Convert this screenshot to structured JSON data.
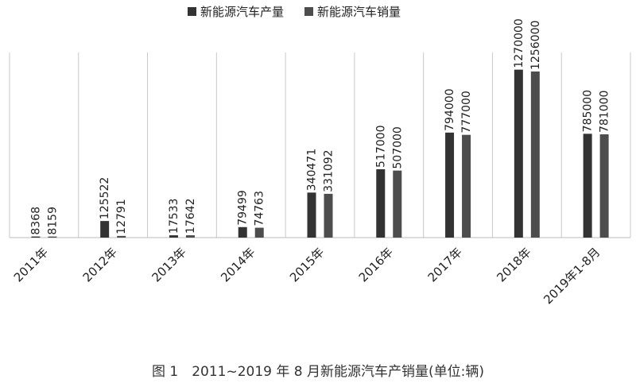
{
  "chart_data": {
    "type": "bar",
    "categories": [
      "2011年",
      "2012年",
      "2013年",
      "2014年",
      "2015年",
      "2016年",
      "2017年",
      "2018年",
      "2019年1-8月"
    ],
    "series": [
      {
        "name": "新能源汽车产量",
        "color": "#333333",
        "values": [
          8368,
          125522,
          17533,
          79499,
          340471,
          517000,
          794000,
          1270000,
          785000
        ],
        "labels": [
          "8368",
          "125522",
          "17533",
          "79499",
          "340471",
          "517000",
          "794000",
          "1270000",
          "785000"
        ]
      },
      {
        "name": "新能源汽车销量",
        "color": "#4d4d4d",
        "values": [
          8159,
          12791,
          17642,
          74763,
          331092,
          507000,
          777000,
          1256000,
          781000
        ],
        "labels": [
          "8159",
          "12791",
          "17642",
          "74763",
          "331092",
          "507000",
          "777000",
          "1256000",
          "781000"
        ]
      }
    ],
    "ylim": [
      0,
      1400000
    ],
    "legend_position": "top",
    "grid": "vertical-category-separators"
  },
  "caption": "图 1　2011~2019 年 8 月新能源汽车产销量(单位:辆)"
}
